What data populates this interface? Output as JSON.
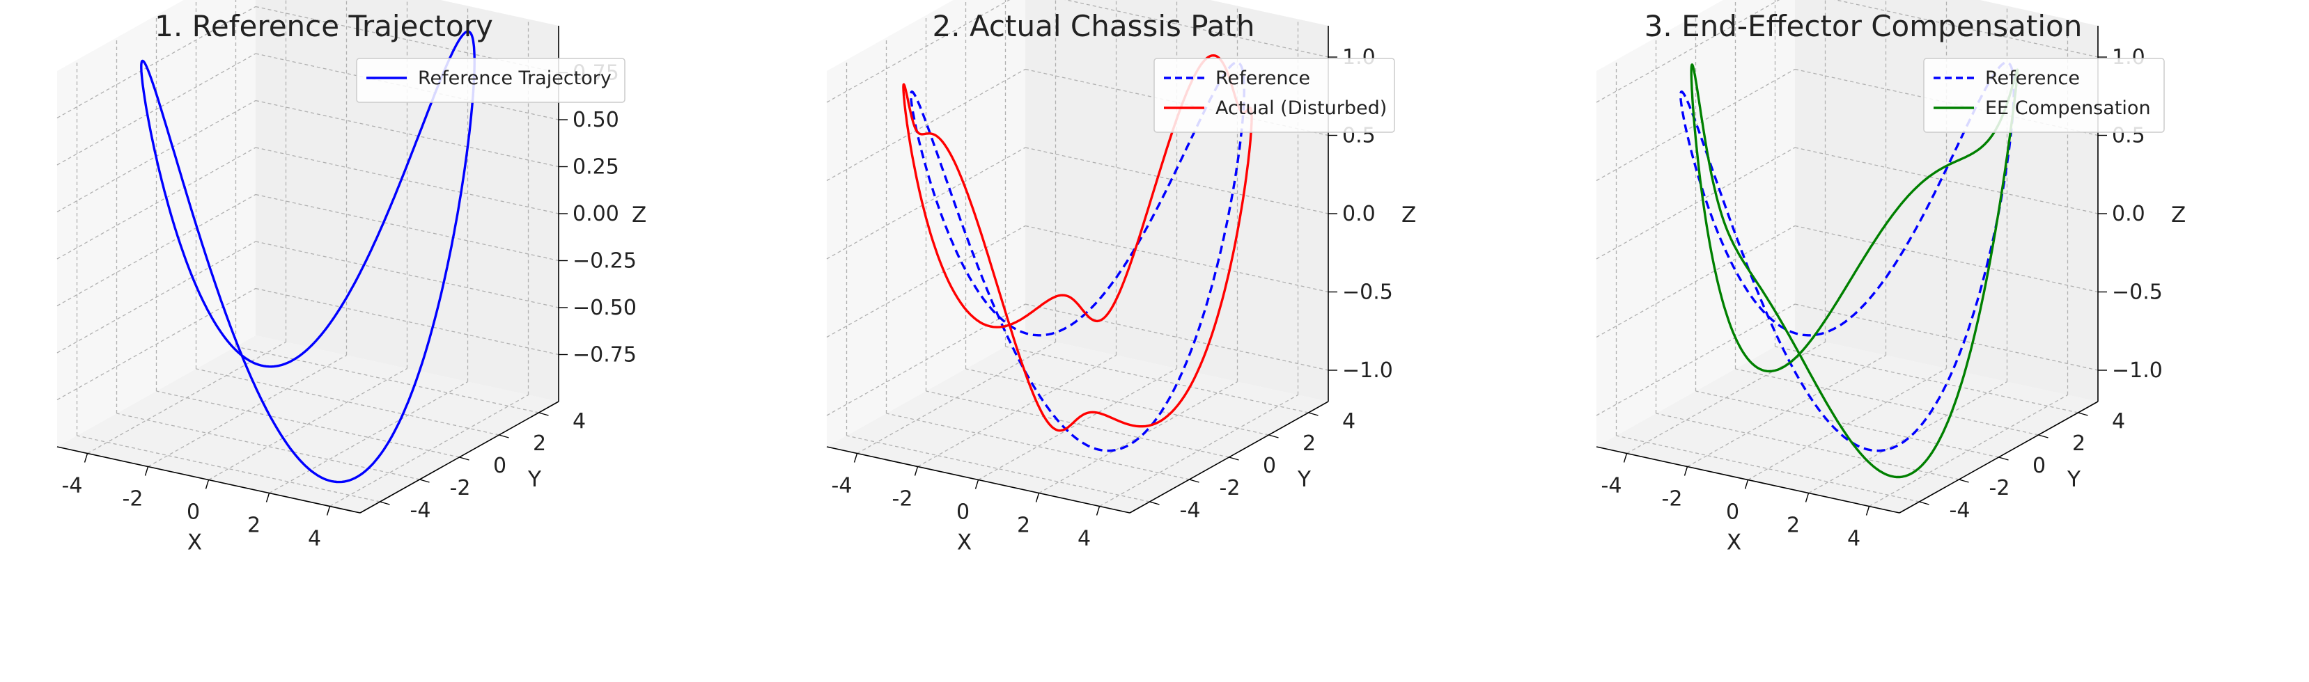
{
  "chart_data": [
    {
      "type": "line3d",
      "title": "1. Reference Trajectory",
      "xlabel": "X",
      "ylabel": "Y",
      "zlabel": "Z",
      "xlim": [
        -5,
        5
      ],
      "ylim": [
        -5,
        5
      ],
      "zlim": [
        -1,
        1
      ],
      "xticks": [
        -4,
        -2,
        0,
        2,
        4
      ],
      "yticks": [
        -4,
        -2,
        0,
        2,
        4
      ],
      "zticks": [
        0.75,
        0.5,
        0.25,
        0.0,
        -0.25,
        -0.5,
        -0.75
      ],
      "ztick_labels": [
        "0.75",
        "0.50",
        "0.25",
        "0.00",
        "−0.25",
        "−0.50",
        "−0.75"
      ],
      "grid": true,
      "legend": "top-right",
      "series": [
        {
          "name": "Reference Trajectory",
          "color": "#0000ff",
          "style": "solid",
          "curve": "reference"
        }
      ]
    },
    {
      "type": "line3d",
      "title": "2. Actual Chassis Path",
      "xlabel": "X",
      "ylabel": "Y",
      "zlabel": "Z",
      "xlim": [
        -5,
        5
      ],
      "ylim": [
        -5,
        5
      ],
      "zlim": [
        -1.2,
        1.2
      ],
      "xticks": [
        -4,
        -2,
        0,
        2,
        4
      ],
      "yticks": [
        -4,
        -2,
        0,
        2,
        4
      ],
      "zticks": [
        1.0,
        0.5,
        0.0,
        -0.5,
        -1.0
      ],
      "ztick_labels": [
        "1.0",
        "0.5",
        "0.0",
        "−0.5",
        "−1.0"
      ],
      "grid": true,
      "legend": "top-right",
      "series": [
        {
          "name": "Reference",
          "color": "#0000ff",
          "style": "dashed",
          "curve": "reference"
        },
        {
          "name": "Actual (Disturbed)",
          "color": "#ff0000",
          "style": "solid",
          "curve": "disturbed"
        }
      ]
    },
    {
      "type": "line3d",
      "title": "3. End-Effector Compensation",
      "xlabel": "X",
      "ylabel": "Y",
      "zlabel": "Z",
      "xlim": [
        -5,
        5
      ],
      "ylim": [
        -5,
        5
      ],
      "zlim": [
        -1.2,
        1.2
      ],
      "xticks": [
        -4,
        -2,
        0,
        2,
        4
      ],
      "yticks": [
        -4,
        -2,
        0,
        2,
        4
      ],
      "zticks": [
        1.0,
        0.5,
        0.0,
        -0.5,
        -1.0
      ],
      "ztick_labels": [
        "1.0",
        "0.5",
        "0.0",
        "−0.5",
        "−1.0"
      ],
      "grid": true,
      "legend": "top-right",
      "series": [
        {
          "name": "Reference",
          "color": "#0000ff",
          "style": "dashed",
          "curve": "reference"
        },
        {
          "name": "EE Compensation",
          "color": "#008000",
          "style": "solid",
          "curve": "compensated"
        }
      ]
    }
  ]
}
